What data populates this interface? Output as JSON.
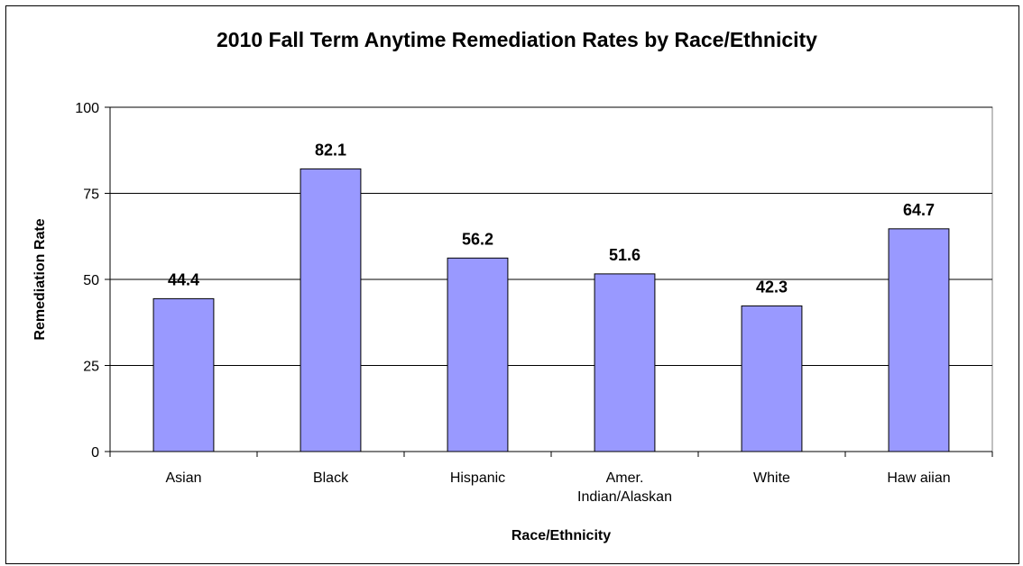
{
  "chart_data": {
    "type": "bar",
    "title": "2010 Fall Term Anytime Remediation Rates by Race/Ethnicity",
    "xlabel": "Race/Ethnicity",
    "ylabel": "Remediation Rate",
    "categories": [
      "Asian",
      "Black",
      "Hispanic",
      "Amer. Indian/Alaskan",
      "White",
      "Haw aiian"
    ],
    "category_lines": [
      [
        "Asian"
      ],
      [
        "Black"
      ],
      [
        "Hispanic"
      ],
      [
        "Amer.",
        "Indian/Alaskan"
      ],
      [
        "White"
      ],
      [
        "Haw aiian"
      ]
    ],
    "values": [
      44.4,
      82.1,
      56.2,
      51.6,
      42.3,
      64.7
    ],
    "data_labels": [
      "44.4",
      "82.1",
      "56.2",
      "51.6",
      "42.3",
      "64.7"
    ],
    "ylim": [
      0,
      100
    ],
    "yticks": [
      0,
      25,
      50,
      75,
      100
    ],
    "grid": true,
    "legend": "none",
    "colors": {
      "bar_fill": "#9999ff",
      "bar_stroke": "#000000",
      "gridline": "#000000",
      "plot_border": "#808080"
    }
  }
}
